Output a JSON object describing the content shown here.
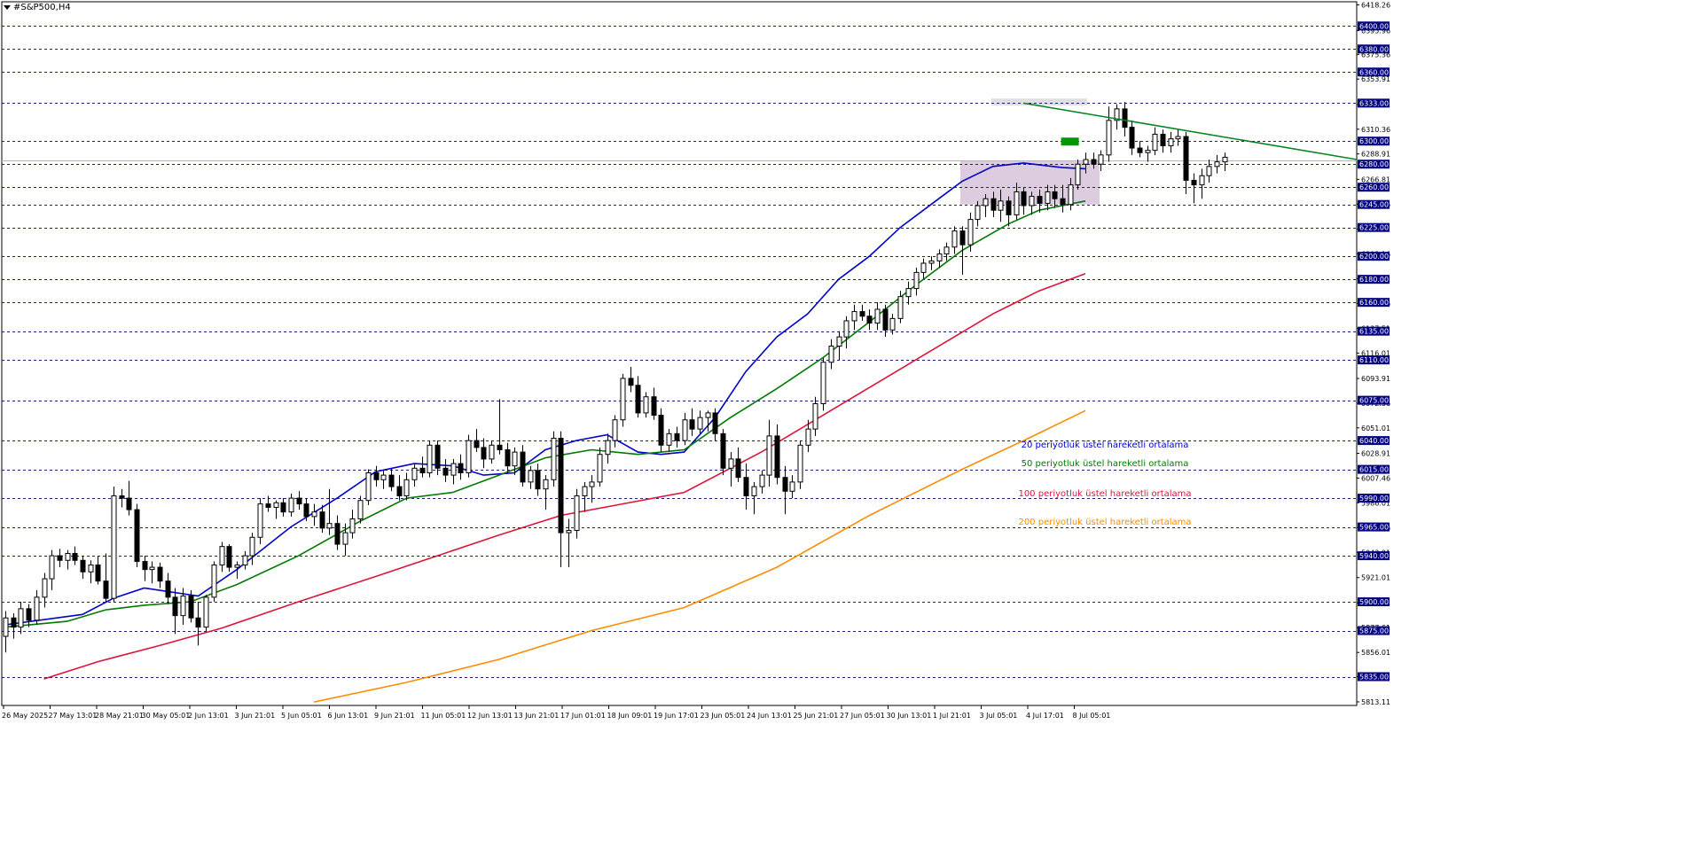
{
  "chart_data": {
    "type": "candlestick",
    "title": "#S&P500,H4",
    "y_axis": {
      "range": [
        5810,
        6421
      ],
      "price_ticks": [
        "6418.26",
        "6395.96",
        "6375.36",
        "6353.91",
        "6331.61",
        "6310.36",
        "6288.91",
        "6266.81",
        "6245.26",
        "6223.71",
        "6202.16",
        "6180.61",
        "6159.06",
        "6137.51",
        "6116.01",
        "6093.91",
        "6072.36",
        "6051.01",
        "6028.91",
        "6007.46",
        "5986.01",
        "5964.46",
        "5942.91",
        "5921.01",
        "5899.11",
        "5877.61",
        "5856.01",
        "5835.01",
        "5813.11"
      ],
      "level_labels": [
        "6400.00",
        "6380.00",
        "6360.00",
        "6333.00",
        "6300.00",
        "6280.00",
        "6260.00",
        "6245.00",
        "6225.00",
        "6200.00",
        "6180.00",
        "6160.00",
        "6135.00",
        "6110.00",
        "6075.00",
        "6040.00",
        "6015.00",
        "5990.00",
        "5965.00",
        "5940.00",
        "5900.00",
        "5875.00",
        "5835.00"
      ]
    },
    "x_axis": {
      "tick_labels": [
        "26 May 2025",
        "27 May 13:01",
        "28 May 21:01",
        "30 May 05:01",
        "2 Jun 13:01",
        "3 Jun 21:01",
        "5 Jun 05:01",
        "6 Jun 13:01",
        "9 Jun 21:01",
        "11 Jun 05:01",
        "12 Jun 13:01",
        "13 Jun 21:01",
        "17 Jun 01:01",
        "18 Jun 09:01",
        "19 Jun 17:01",
        "23 Jun 05:01",
        "24 Jun 13:01",
        "25 Jun 21:01",
        "27 Jun 05:01",
        "30 Jun 13:01",
        "1 Jul 21:01",
        "3 Jul 05:01",
        "4 Jul 17:01",
        "8 Jul 05:01"
      ]
    },
    "horizontal_levels": [
      6400,
      6380,
      6360,
      6333,
      6300,
      6280,
      6260,
      6245,
      6225,
      6200,
      6180,
      6160,
      6135,
      6110,
      6075,
      6040,
      6015,
      5990,
      5965,
      5940,
      5900,
      5875,
      5835
    ],
    "current_price_line": 6283,
    "zones": [
      {
        "from": 6245,
        "to": 6283,
        "color": "#d9c6dd"
      },
      {
        "from": 6331,
        "to": 6337,
        "color": "#dcdcdc"
      }
    ],
    "trendline": {
      "color": "#00821e",
      "from": [
        132,
        6333
      ],
      "to": [
        244,
        6206
      ]
    },
    "marker": {
      "color": "#009a00",
      "bar": 138,
      "price": 6300
    },
    "moving_averages": [
      {
        "name": "20 periyotluk üstel hareketli ortalama",
        "color": "#0000c8",
        "points": [
          [
            0,
            5880
          ],
          [
            10,
            5889
          ],
          [
            14,
            5903
          ],
          [
            18,
            5912
          ],
          [
            25,
            5905
          ],
          [
            30,
            5928
          ],
          [
            37,
            5965
          ],
          [
            43,
            5990
          ],
          [
            48,
            6013
          ],
          [
            53,
            6020
          ],
          [
            58,
            6018
          ],
          [
            62,
            6010
          ],
          [
            66,
            6012
          ],
          [
            70,
            6032
          ],
          [
            74,
            6040
          ],
          [
            78,
            6045
          ],
          [
            82,
            6030
          ],
          [
            85,
            6028
          ],
          [
            88,
            6030
          ],
          [
            92,
            6060
          ],
          [
            96,
            6100
          ],
          [
            100,
            6130
          ],
          [
            104,
            6150
          ],
          [
            108,
            6180
          ],
          [
            112,
            6200
          ],
          [
            116,
            6225
          ],
          [
            120,
            6245
          ],
          [
            124,
            6265
          ],
          [
            128,
            6278
          ],
          [
            132,
            6281
          ],
          [
            137,
            6277
          ],
          [
            140,
            6276
          ]
        ]
      },
      {
        "name": "50 periyotluk üstel hareketli ortalama",
        "color": "#007800",
        "points": [
          [
            0,
            5878
          ],
          [
            8,
            5883
          ],
          [
            13,
            5893
          ],
          [
            18,
            5897
          ],
          [
            24,
            5900
          ],
          [
            30,
            5915
          ],
          [
            38,
            5940
          ],
          [
            46,
            5970
          ],
          [
            52,
            5990
          ],
          [
            58,
            5995
          ],
          [
            64,
            6010
          ],
          [
            70,
            6025
          ],
          [
            76,
            6032
          ],
          [
            82,
            6028
          ],
          [
            88,
            6032
          ],
          [
            94,
            6060
          ],
          [
            100,
            6085
          ],
          [
            106,
            6112
          ],
          [
            112,
            6143
          ],
          [
            118,
            6175
          ],
          [
            124,
            6205
          ],
          [
            130,
            6228
          ],
          [
            134,
            6240
          ],
          [
            140,
            6248
          ]
        ]
      },
      {
        "name": "100 periyotluk üstel hareketli ortalama",
        "color": "#dc143c",
        "points": [
          [
            5,
            5833
          ],
          [
            12,
            5848
          ],
          [
            20,
            5862
          ],
          [
            28,
            5877
          ],
          [
            38,
            5900
          ],
          [
            48,
            5922
          ],
          [
            56,
            5940
          ],
          [
            64,
            5958
          ],
          [
            72,
            5975
          ],
          [
            80,
            5985
          ],
          [
            88,
            5995
          ],
          [
            98,
            6030
          ],
          [
            108,
            6070
          ],
          [
            118,
            6110
          ],
          [
            128,
            6150
          ],
          [
            134,
            6170
          ],
          [
            140,
            6185
          ]
        ]
      },
      {
        "name": "200 periyotluk üstel hareketli ortalama",
        "color": "#ff8c00",
        "points": [
          [
            40,
            5813
          ],
          [
            52,
            5830
          ],
          [
            64,
            5850
          ],
          [
            76,
            5875
          ],
          [
            88,
            5895
          ],
          [
            100,
            5930
          ],
          [
            112,
            5975
          ],
          [
            124,
            6015
          ],
          [
            132,
            6040
          ],
          [
            140,
            6066
          ]
        ]
      }
    ],
    "series_ohlc": [
      [
        5870,
        5892,
        5856,
        5886
      ],
      [
        5886,
        5890,
        5868,
        5878
      ],
      [
        5878,
        5900,
        5872,
        5894
      ],
      [
        5894,
        5898,
        5878,
        5884
      ],
      [
        5884,
        5910,
        5880,
        5904
      ],
      [
        5904,
        5925,
        5895,
        5920
      ],
      [
        5920,
        5945,
        5910,
        5940
      ],
      [
        5940,
        5946,
        5930,
        5936
      ],
      [
        5936,
        5945,
        5928,
        5942
      ],
      [
        5942,
        5948,
        5932,
        5936
      ],
      [
        5936,
        5940,
        5920,
        5926
      ],
      [
        5926,
        5936,
        5916,
        5932
      ],
      [
        5932,
        5940,
        5915,
        5918
      ],
      [
        5918,
        5942,
        5900,
        5903
      ],
      [
        5903,
        6000,
        5900,
        5992
      ],
      [
        5992,
        5998,
        5982,
        5990
      ],
      [
        5990,
        6005,
        5975,
        5980
      ],
      [
        5980,
        5985,
        5930,
        5935
      ],
      [
        5935,
        5940,
        5918,
        5928
      ],
      [
        5928,
        5935,
        5916,
        5930
      ],
      [
        5930,
        5934,
        5912,
        5918
      ],
      [
        5918,
        5925,
        5898,
        5904
      ],
      [
        5904,
        5912,
        5872,
        5888
      ],
      [
        5888,
        5912,
        5880,
        5905
      ],
      [
        5905,
        5910,
        5882,
        5886
      ],
      [
        5886,
        5900,
        5862,
        5878
      ],
      [
        5878,
        5906,
        5874,
        5904
      ],
      [
        5904,
        5935,
        5900,
        5932
      ],
      [
        5932,
        5952,
        5926,
        5948
      ],
      [
        5948,
        5950,
        5926,
        5930
      ],
      [
        5930,
        5935,
        5920,
        5932
      ],
      [
        5932,
        5944,
        5928,
        5940
      ],
      [
        5940,
        5960,
        5932,
        5956
      ],
      [
        5956,
        5990,
        5950,
        5985
      ],
      [
        5985,
        5992,
        5978,
        5982
      ],
      [
        5982,
        5988,
        5972,
        5986
      ],
      [
        5986,
        5990,
        5974,
        5978
      ],
      [
        5978,
        5994,
        5974,
        5990
      ],
      [
        5990,
        5996,
        5980,
        5985
      ],
      [
        5985,
        5990,
        5970,
        5974
      ],
      [
        5974,
        5985,
        5966,
        5978
      ],
      [
        5978,
        5984,
        5960,
        5964
      ],
      [
        5964,
        5998,
        5958,
        5968
      ],
      [
        5968,
        5975,
        5945,
        5950
      ],
      [
        5950,
        5968,
        5940,
        5960
      ],
      [
        5960,
        5980,
        5955,
        5972
      ],
      [
        5972,
        5992,
        5968,
        5988
      ],
      [
        5988,
        6015,
        5984,
        6012
      ],
      [
        6012,
        6018,
        6000,
        6006
      ],
      [
        6006,
        6014,
        5998,
        6010
      ],
      [
        6010,
        6016,
        5996,
        6000
      ],
      [
        6000,
        6010,
        5988,
        5992
      ],
      [
        5992,
        6012,
        5988,
        6006
      ],
      [
        6006,
        6020,
        6000,
        6016
      ],
      [
        6016,
        6026,
        6008,
        6012
      ],
      [
        6012,
        6040,
        6008,
        6036
      ],
      [
        6036,
        6040,
        6010,
        6016
      ],
      [
        6016,
        6024,
        6004,
        6010
      ],
      [
        6010,
        6024,
        6002,
        6020
      ],
      [
        6020,
        6028,
        6006,
        6012
      ],
      [
        6012,
        6045,
        6008,
        6040
      ],
      [
        6040,
        6050,
        6030,
        6034
      ],
      [
        6034,
        6042,
        6016,
        6024
      ],
      [
        6024,
        6040,
        6020,
        6036
      ],
      [
        6036,
        6076,
        6028,
        6032
      ],
      [
        6032,
        6038,
        6012,
        6018
      ],
      [
        6018,
        6034,
        6010,
        6030
      ],
      [
        6030,
        6036,
        6000,
        6004
      ],
      [
        6004,
        6018,
        5998,
        6014
      ],
      [
        6014,
        6020,
        5992,
        5998
      ],
      [
        5998,
        6010,
        5980,
        6006
      ],
      [
        6006,
        6048,
        6000,
        6042
      ],
      [
        6042,
        6048,
        5930,
        5960
      ],
      [
        5960,
        5972,
        5930,
        5962
      ],
      [
        5962,
        5998,
        5955,
        5992
      ],
      [
        5992,
        6004,
        5978,
        6000
      ],
      [
        6000,
        6010,
        5986,
        6004
      ],
      [
        6004,
        6034,
        6000,
        6028
      ],
      [
        6028,
        6046,
        6020,
        6040
      ],
      [
        6040,
        6062,
        6034,
        6058
      ],
      [
        6058,
        6098,
        6052,
        6094
      ],
      [
        6094,
        6104,
        6082,
        6088
      ],
      [
        6088,
        6096,
        6060,
        6064
      ],
      [
        6064,
        6082,
        6060,
        6078
      ],
      [
        6078,
        6086,
        6058,
        6062
      ],
      [
        6062,
        6068,
        6030,
        6036
      ],
      [
        6036,
        6050,
        6030,
        6046
      ],
      [
        6046,
        6052,
        6034,
        6040
      ],
      [
        6040,
        6064,
        6036,
        6058
      ],
      [
        6058,
        6068,
        6044,
        6050
      ],
      [
        6050,
        6066,
        6046,
        6060
      ],
      [
        6060,
        6066,
        6048,
        6064
      ],
      [
        6064,
        6068,
        6040,
        6046
      ],
      [
        6046,
        6050,
        6010,
        6016
      ],
      [
        6016,
        6030,
        6000,
        6024
      ],
      [
        6024,
        6034,
        6004,
        6008
      ],
      [
        6008,
        6020,
        5980,
        5992
      ],
      [
        5992,
        6004,
        5976,
        6000
      ],
      [
        6000,
        6014,
        5994,
        6010
      ],
      [
        6010,
        6058,
        6000,
        6044
      ],
      [
        6044,
        6054,
        6002,
        6008
      ],
      [
        6008,
        6018,
        5976,
        5996
      ],
      [
        5996,
        6010,
        5990,
        6004
      ],
      [
        6004,
        6040,
        5998,
        6036
      ],
      [
        6036,
        6058,
        6030,
        6050
      ],
      [
        6050,
        6078,
        6044,
        6072
      ],
      [
        6072,
        6112,
        6066,
        6108
      ],
      [
        6108,
        6128,
        6102,
        6122
      ],
      [
        6122,
        6135,
        6110,
        6130
      ],
      [
        6130,
        6148,
        6120,
        6144
      ],
      [
        6144,
        6158,
        6136,
        6152
      ],
      [
        6152,
        6158,
        6144,
        6148
      ],
      [
        6148,
        6154,
        6136,
        6142
      ],
      [
        6142,
        6160,
        6136,
        6154
      ],
      [
        6154,
        6158,
        6130,
        6136
      ],
      [
        6136,
        6150,
        6132,
        6146
      ],
      [
        6146,
        6170,
        6142,
        6165
      ],
      [
        6165,
        6178,
        6158,
        6172
      ],
      [
        6172,
        6190,
        6166,
        6186
      ],
      [
        6186,
        6198,
        6180,
        6194
      ],
      [
        6194,
        6200,
        6188,
        6196
      ],
      [
        6196,
        6206,
        6190,
        6202
      ],
      [
        6202,
        6212,
        6196,
        6208
      ],
      [
        6208,
        6226,
        6202,
        6222
      ],
      [
        6222,
        6226,
        6184,
        6210
      ],
      [
        6210,
        6238,
        6204,
        6232
      ],
      [
        6232,
        6248,
        6226,
        6244
      ],
      [
        6244,
        6254,
        6234,
        6250
      ],
      [
        6250,
        6256,
        6234,
        6240
      ],
      [
        6240,
        6258,
        6230,
        6248
      ],
      [
        6248,
        6252,
        6226,
        6236
      ],
      [
        6236,
        6264,
        6232,
        6256
      ],
      [
        6256,
        6260,
        6236,
        6244
      ],
      [
        6244,
        6256,
        6236,
        6252
      ],
      [
        6252,
        6258,
        6238,
        6246
      ],
      [
        6246,
        6262,
        6240,
        6256
      ],
      [
        6256,
        6262,
        6242,
        6250
      ],
      [
        6250,
        6262,
        6238,
        6245
      ],
      [
        6245,
        6268,
        6240,
        6262
      ],
      [
        6262,
        6284,
        6258,
        6280
      ],
      [
        6280,
        6290,
        6272,
        6284
      ],
      [
        6284,
        6290,
        6276,
        6280
      ],
      [
        6280,
        6292,
        6274,
        6288
      ],
      [
        6288,
        6330,
        6282,
        6318
      ],
      [
        6318,
        6332,
        6310,
        6328
      ],
      [
        6328,
        6334,
        6304,
        6312
      ],
      [
        6312,
        6318,
        6288,
        6294
      ],
      [
        6294,
        6300,
        6286,
        6290
      ],
      [
        6290,
        6296,
        6282,
        6292
      ],
      [
        6292,
        6312,
        6288,
        6306
      ],
      [
        6306,
        6310,
        6290,
        6296
      ],
      [
        6296,
        6308,
        6290,
        6302
      ],
      [
        6302,
        6310,
        6296,
        6304
      ],
      [
        6304,
        6308,
        6254,
        6266
      ],
      [
        6266,
        6272,
        6246,
        6262
      ],
      [
        6262,
        6276,
        6250,
        6270
      ],
      [
        6270,
        6284,
        6264,
        6278
      ],
      [
        6278,
        6288,
        6272,
        6282
      ],
      [
        6282,
        6290,
        6274,
        6286
      ]
    ]
  },
  "legend_labels": [
    "20 periyotluk üstel hareketli ortalama",
    "50 periyotluk üstel hareketli ortalama",
    "100 periyotluk üstel hareketli ortalama",
    "200 periyotluk üstel hareketli ortalama"
  ],
  "colors": {
    "bull": "#ffffff",
    "bear": "#000000",
    "wick": "#000000",
    "grid_level": "#1f1f6e",
    "axis_label_bg": "#000080",
    "axis_label_text": "#ffffff",
    "price_line": "#b4b4b4"
  }
}
